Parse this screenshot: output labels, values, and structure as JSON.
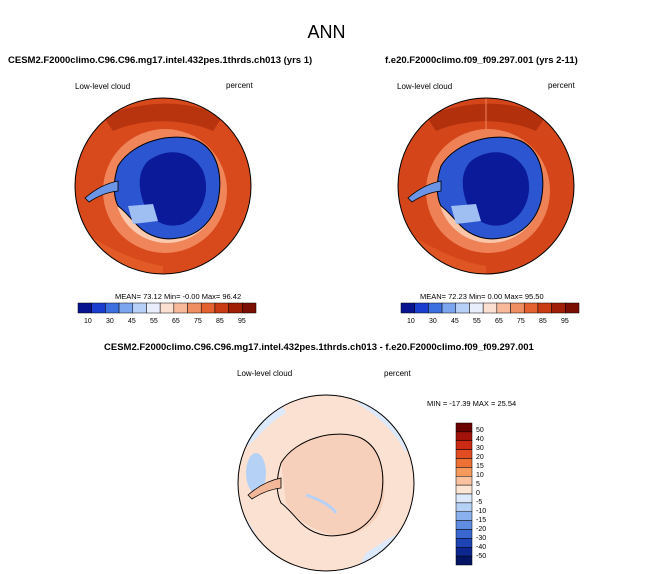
{
  "figure": {
    "title": "ANN"
  },
  "panels": [
    {
      "title": "CESM2.F2000climo.C96.C96.mg17.intel.432pes.1thrds.ch013 (yrs 1)",
      "variable": "Low-level cloud",
      "units": "percent",
      "stats": "MEAN=  73.12  Min=  -0.00  Max=  96.42"
    },
    {
      "title": "f.e20.F2000climo.f09_f09.297.001 (yrs 2-11)",
      "variable": "Low-level cloud",
      "units": "percent",
      "stats": "MEAN=  72.23  Min=   0.00  Max=  95.50"
    },
    {
      "title": "CESM2.F2000climo.C96.C96.mg17.intel.432pes.1thrds.ch013 - f.e20.F2000climo.f09_f09.297.001",
      "variable": "Low-level cloud",
      "units": "percent",
      "stats": "MIN = -17.39 MAX =  25.54"
    }
  ],
  "colorbars": {
    "abs": {
      "labels": [
        "10",
        "30",
        "45",
        "55",
        "65",
        "75",
        "85",
        "95"
      ],
      "colors": [
        "#08148f",
        "#1a3ccf",
        "#3c6fe0",
        "#7ba6ef",
        "#b7d0f7",
        "#e8eefb",
        "#fbe0d2",
        "#f7b99a",
        "#f08e63",
        "#e4622f",
        "#c93b12",
        "#a01e06",
        "#7a0e02"
      ]
    },
    "diff": {
      "labels": [
        "50",
        "40",
        "30",
        "20",
        "15",
        "10",
        "5",
        "0",
        "-5",
        "-10",
        "-15",
        "-20",
        "-30",
        "-40",
        "-50"
      ],
      "colors": [
        "#6b0000",
        "#a3120a",
        "#cc2a14",
        "#e24c22",
        "#ee7034",
        "#f59a5c",
        "#fac3a0",
        "#fde5d4",
        "#dce9fa",
        "#b6d1f6",
        "#8ab1ee",
        "#5e8de2",
        "#3a68d0",
        "#1d43b4",
        "#0c2790",
        "#051566"
      ]
    }
  },
  "chart_data": [
    {
      "type": "heatmap",
      "title": "CESM2.F2000climo.C96.C96.mg17.intel.432pes.1thrds.ch013 (yrs 1)",
      "variable": "Low-level cloud",
      "units": "percent",
      "projection": "south-polar stereographic",
      "levels": [
        10,
        20,
        30,
        40,
        45,
        50,
        55,
        60,
        65,
        70,
        75,
        80,
        85,
        90,
        95
      ],
      "mean": 73.12,
      "min": -0.0,
      "max": 96.42
    },
    {
      "type": "heatmap",
      "title": "f.e20.F2000climo.f09_f09.297.001 (yrs 2-11)",
      "variable": "Low-level cloud",
      "units": "percent",
      "projection": "south-polar stereographic",
      "levels": [
        10,
        20,
        30,
        40,
        45,
        50,
        55,
        60,
        65,
        70,
        75,
        80,
        85,
        90,
        95
      ],
      "mean": 72.23,
      "min": 0.0,
      "max": 95.5
    },
    {
      "type": "heatmap",
      "title": "CESM2.F2000climo.C96.C96.mg17.intel.432pes.1thrds.ch013 - f.e20.F2000climo.f09_f09.297.001",
      "variable": "Low-level cloud",
      "units": "percent",
      "projection": "south-polar stereographic",
      "levels": [
        -50,
        -40,
        -30,
        -20,
        -15,
        -10,
        -5,
        0,
        5,
        10,
        15,
        20,
        30,
        40,
        50
      ],
      "min": -17.39,
      "max": 25.54
    }
  ]
}
